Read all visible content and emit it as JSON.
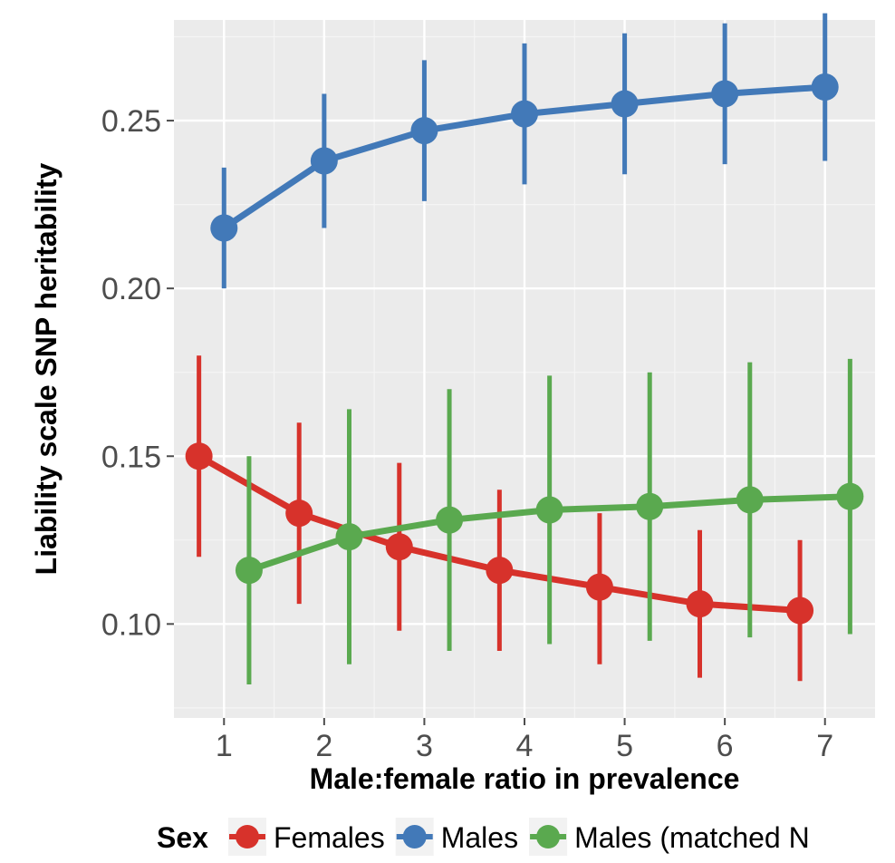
{
  "chart_data": {
    "type": "line",
    "xlabel": "Male:female ratio in prevalence",
    "ylabel": "Liability scale SNP heritability",
    "x": [
      1,
      2,
      3,
      4,
      5,
      6,
      7
    ],
    "x_ticks": [
      "1",
      "2",
      "3",
      "4",
      "5",
      "6",
      "7"
    ],
    "y_ticks": [
      "0.10",
      "0.15",
      "0.20",
      "0.25"
    ],
    "xlim": [
      0.5,
      7.5
    ],
    "ylim": [
      0.072,
      0.28
    ],
    "grid": true,
    "legend": {
      "title": "Sex",
      "placement": "bottom",
      "entries": [
        "Females",
        "Males",
        "Males (matched N"
      ]
    },
    "series": [
      {
        "name": "Females",
        "color": "#d7322b",
        "x": [
          0.75,
          1.75,
          2.75,
          3.75,
          4.75,
          5.75,
          6.75
        ],
        "values": [
          0.15,
          0.133,
          0.123,
          0.116,
          0.111,
          0.106,
          0.104
        ],
        "lower": [
          0.12,
          0.106,
          0.098,
          0.092,
          0.088,
          0.084,
          0.083
        ],
        "upper": [
          0.18,
          0.16,
          0.148,
          0.14,
          0.133,
          0.128,
          0.125
        ]
      },
      {
        "name": "Males",
        "color": "#4279b8",
        "x": [
          1.0,
          2.0,
          3.0,
          4.0,
          5.0,
          6.0,
          7.0
        ],
        "values": [
          0.218,
          0.238,
          0.247,
          0.252,
          0.255,
          0.258,
          0.26
        ],
        "lower": [
          0.2,
          0.218,
          0.226,
          0.231,
          0.234,
          0.237,
          0.238
        ],
        "upper": [
          0.236,
          0.258,
          0.268,
          0.273,
          0.276,
          0.279,
          0.282
        ]
      },
      {
        "name": "Males (matched N",
        "color": "#5aa94f",
        "x": [
          1.25,
          2.25,
          3.25,
          4.25,
          5.25,
          6.25,
          7.25
        ],
        "values": [
          0.116,
          0.126,
          0.131,
          0.134,
          0.135,
          0.137,
          0.138
        ],
        "lower": [
          0.082,
          0.088,
          0.092,
          0.094,
          0.095,
          0.096,
          0.097
        ],
        "upper": [
          0.15,
          0.164,
          0.17,
          0.174,
          0.175,
          0.178,
          0.179
        ]
      }
    ]
  }
}
